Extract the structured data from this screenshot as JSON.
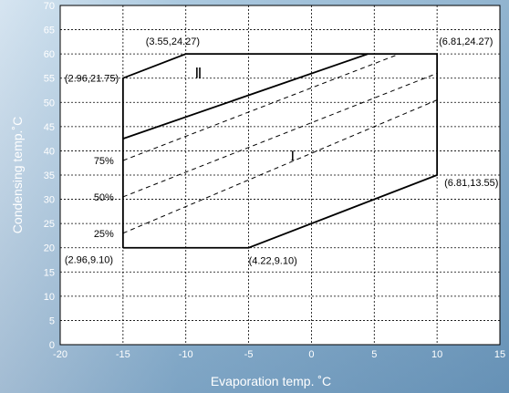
{
  "chart_data": {
    "type": "line",
    "xlabel": "Evaporation temp.   ˚C",
    "ylabel": "Condensing temp.˚C",
    "xlim": [
      -20,
      15
    ],
    "ylim": [
      0,
      70
    ],
    "x_ticks": [
      "-20",
      "-15",
      "-10",
      "-5",
      "0",
      "5",
      "10",
      "15"
    ],
    "y_ticks": [
      "0",
      "5",
      "10",
      "15",
      "20",
      "25",
      "30",
      "35",
      "40",
      "45",
      "50",
      "55",
      "60",
      "65",
      "70"
    ],
    "grid": true,
    "envelope": {
      "points": [
        [
          -15,
          20
        ],
        [
          -5,
          20
        ],
        [
          10,
          35
        ],
        [
          10,
          60
        ],
        [
          -10,
          60
        ],
        [
          -15,
          55
        ],
        [
          -15,
          20
        ]
      ]
    },
    "divider_line": {
      "points": [
        [
          -15,
          42.5
        ],
        [
          4.5,
          60
        ]
      ]
    },
    "dashed_lines": [
      {
        "label": "75%",
        "points": [
          [
            -15,
            38
          ],
          [
            7,
            60
          ]
        ]
      },
      {
        "label": "50%",
        "points": [
          [
            -15,
            30.5
          ],
          [
            10,
            56
          ]
        ]
      },
      {
        "label": "25%",
        "points": [
          [
            -15,
            23
          ],
          [
            10,
            50.5
          ]
        ]
      }
    ],
    "annotations": [
      {
        "text": "(2.96,21.75)",
        "x": -15,
        "y": 55
      },
      {
        "text": "(3.55,24.27)",
        "x": -10,
        "y": 60
      },
      {
        "text": "(6.81,24.27)",
        "x": 10,
        "y": 60
      },
      {
        "text": "(6.81,13.55)",
        "x": 10,
        "y": 35
      },
      {
        "text": "(4.22,9.10)",
        "x": -5,
        "y": 20
      },
      {
        "text": "(2.96,9.10)",
        "x": -15,
        "y": 20
      }
    ],
    "regions": [
      {
        "text": "Ⅱ",
        "x": -9,
        "y": 55
      },
      {
        "text": "I",
        "x": -1.5,
        "y": 38
      }
    ]
  }
}
